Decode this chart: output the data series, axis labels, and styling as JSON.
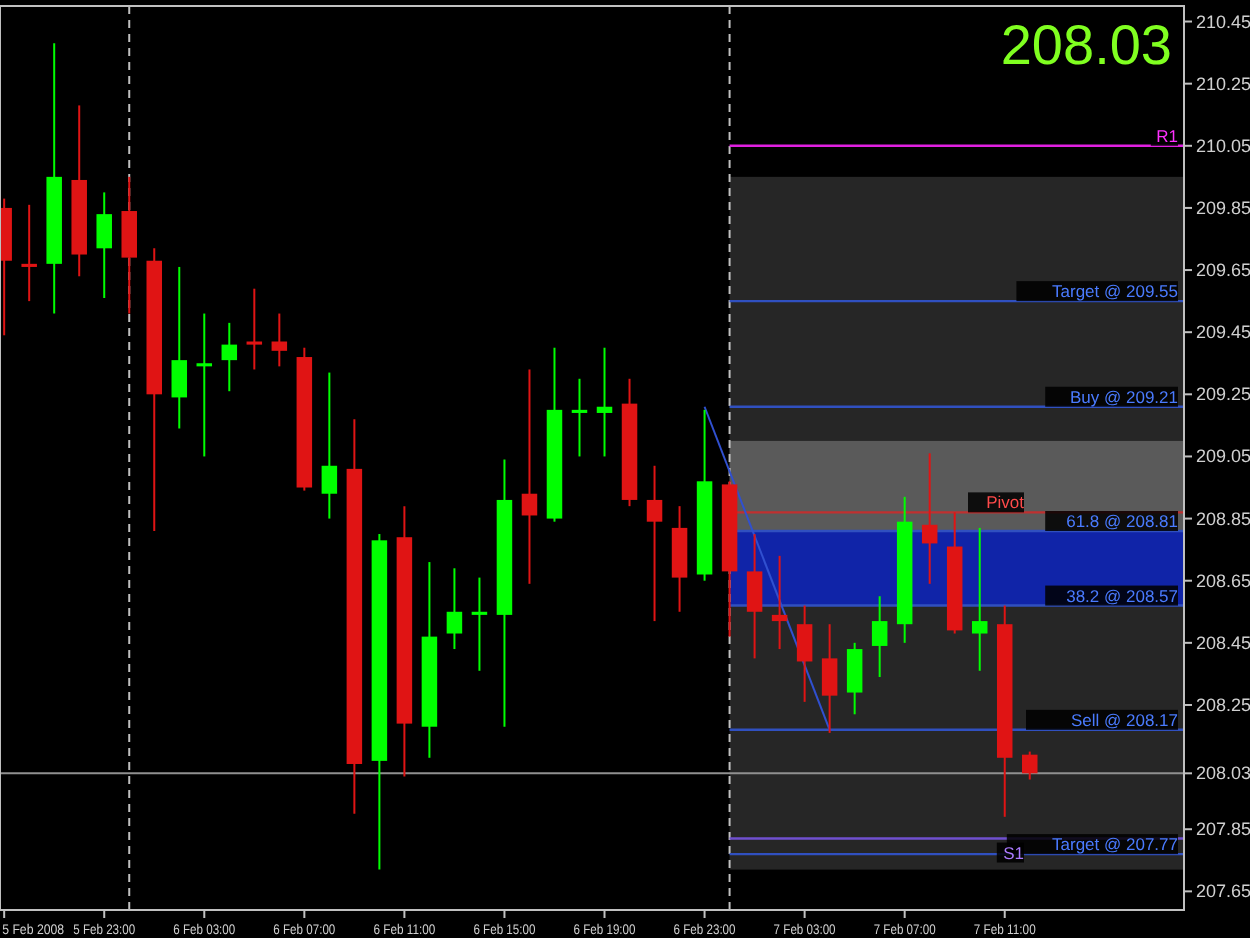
{
  "chart_data": {
    "type": "candlestick",
    "x": [
      "2008-02-05T19:00",
      "2008-02-05T20:00",
      "2008-02-05T21:00",
      "2008-02-05T22:00",
      "2008-02-05T23:00",
      "2008-02-06T00:00",
      "2008-02-06T01:00",
      "2008-02-06T02:00",
      "2008-02-06T03:00",
      "2008-02-06T04:00",
      "2008-02-06T05:00",
      "2008-02-06T06:00",
      "2008-02-06T07:00",
      "2008-02-06T08:00",
      "2008-02-06T09:00",
      "2008-02-06T10:00",
      "2008-02-06T11:00",
      "2008-02-06T12:00",
      "2008-02-06T13:00",
      "2008-02-06T14:00",
      "2008-02-06T15:00",
      "2008-02-06T16:00",
      "2008-02-06T17:00",
      "2008-02-06T18:00",
      "2008-02-06T19:00",
      "2008-02-06T20:00",
      "2008-02-06T21:00",
      "2008-02-06T22:00",
      "2008-02-06T23:00",
      "2008-02-07T00:00",
      "2008-02-07T01:00",
      "2008-02-07T02:00",
      "2008-02-07T03:00",
      "2008-02-07T04:00",
      "2008-02-07T05:00",
      "2008-02-07T06:00",
      "2008-02-07T07:00",
      "2008-02-07T08:00",
      "2008-02-07T09:00",
      "2008-02-07T10:00",
      "2008-02-07T11:00",
      "2008-02-07T12:00"
    ],
    "ohlc": [
      [
        209.85,
        209.88,
        209.44,
        209.68
      ],
      [
        209.67,
        209.86,
        209.55,
        209.66
      ],
      [
        209.67,
        210.38,
        209.51,
        209.95
      ],
      [
        209.94,
        210.18,
        209.63,
        209.7
      ],
      [
        209.72,
        209.9,
        209.56,
        209.83
      ],
      [
        209.84,
        209.95,
        209.51,
        209.69
      ],
      [
        209.68,
        209.72,
        208.81,
        209.25
      ],
      [
        209.24,
        209.66,
        209.14,
        209.36
      ],
      [
        209.34,
        209.51,
        209.05,
        209.35
      ],
      [
        209.36,
        209.48,
        209.26,
        209.41
      ],
      [
        209.42,
        209.59,
        209.33,
        209.41
      ],
      [
        209.42,
        209.51,
        209.34,
        209.39
      ],
      [
        209.37,
        209.4,
        208.94,
        208.95
      ],
      [
        208.93,
        209.32,
        208.85,
        209.02
      ],
      [
        209.01,
        209.17,
        207.9,
        208.06
      ],
      [
        208.07,
        208.8,
        207.72,
        208.78
      ],
      [
        208.79,
        208.89,
        208.02,
        208.19
      ],
      [
        208.18,
        208.71,
        208.08,
        208.47
      ],
      [
        208.48,
        208.69,
        208.43,
        208.55
      ],
      [
        208.54,
        208.66,
        208.36,
        208.55
      ],
      [
        208.54,
        209.04,
        208.18,
        208.91
      ],
      [
        208.93,
        209.33,
        208.64,
        208.86
      ],
      [
        208.85,
        209.4,
        208.84,
        209.2
      ],
      [
        209.19,
        209.3,
        209.05,
        209.2
      ],
      [
        209.19,
        209.4,
        209.05,
        209.21
      ],
      [
        209.22,
        209.3,
        208.89,
        208.91
      ],
      [
        208.91,
        209.02,
        208.52,
        208.84
      ],
      [
        208.82,
        208.89,
        208.55,
        208.66
      ],
      [
        208.67,
        209.2,
        208.65,
        208.97
      ],
      [
        208.96,
        208.97,
        208.47,
        208.68
      ],
      [
        208.68,
        208.8,
        208.4,
        208.55
      ],
      [
        208.54,
        208.73,
        208.43,
        208.52
      ],
      [
        208.51,
        208.57,
        208.26,
        208.39
      ],
      [
        208.4,
        208.51,
        208.16,
        208.28
      ],
      [
        208.29,
        208.45,
        208.22,
        208.43
      ],
      [
        208.44,
        208.6,
        208.34,
        208.52
      ],
      [
        208.51,
        208.92,
        208.45,
        208.84
      ],
      [
        208.83,
        209.06,
        208.64,
        208.77
      ],
      [
        208.76,
        208.87,
        208.48,
        208.49
      ],
      [
        208.48,
        208.82,
        208.36,
        208.52
      ],
      [
        208.51,
        208.57,
        207.89,
        208.08
      ],
      [
        208.09,
        208.1,
        208.01,
        208.03
      ]
    ],
    "series": [
      {
        "type": "line",
        "color": "#3050d0",
        "x": [
          "2008-02-06T23:00",
          "2008-02-07T04:00"
        ],
        "values": [
          209.21,
          208.17
        ]
      }
    ],
    "xlim": [
      "2008-02-05T18:50",
      "2008-02-07T18:10"
    ],
    "xticks": [
      {
        "value": "2008-02-05T19:00",
        "label": "5 Feb 2008"
      },
      {
        "value": "2008-02-05T23:00",
        "label": "5 Feb 23:00"
      },
      {
        "value": "2008-02-06T03:00",
        "label": "6 Feb 03:00"
      },
      {
        "value": "2008-02-06T07:00",
        "label": "6 Feb 07:00"
      },
      {
        "value": "2008-02-06T11:00",
        "label": "6 Feb 11:00"
      },
      {
        "value": "2008-02-06T15:00",
        "label": "6 Feb 15:00"
      },
      {
        "value": "2008-02-06T19:00",
        "label": "6 Feb 19:00"
      },
      {
        "value": "2008-02-06T23:00",
        "label": "6 Feb 23:00"
      },
      {
        "value": "2008-02-07T03:00",
        "label": "7 Feb 03:00"
      },
      {
        "value": "2008-02-07T07:00",
        "label": "7 Feb 07:00"
      },
      {
        "value": "2008-02-07T11:00",
        "label": "7 Feb 11:00"
      }
    ],
    "ylim": [
      207.59,
      210.5
    ],
    "yticks": [
      210.45,
      210.25,
      210.05,
      209.85,
      209.65,
      209.45,
      209.25,
      209.05,
      208.85,
      208.65,
      208.45,
      208.25,
      208.03,
      207.85,
      207.65
    ],
    "bands": [
      {
        "axis": "y",
        "from": 207.72,
        "to": 209.95,
        "color": "#262626"
      },
      {
        "axis": "y",
        "from": 208.81,
        "to": 209.1,
        "color": "#5a5a5a"
      },
      {
        "axis": "y",
        "from": 208.57,
        "to": 208.81,
        "color": "#1024a8"
      }
    ],
    "ref_lines": [
      {
        "axis": "x",
        "value": "2008-02-06T00:00",
        "color": "#c0c0c0",
        "line_style": "dashed"
      },
      {
        "axis": "x",
        "value": "2008-02-07T00:00",
        "color": "#c0c0c0",
        "line_style": "dashed"
      },
      {
        "axis": "y",
        "value": 208.03,
        "color": "#909090"
      },
      {
        "axis": "y",
        "value": 210.05,
        "label": "R1",
        "color": "#e020e0"
      },
      {
        "axis": "y",
        "value": 209.55,
        "label": "Target @  209.55",
        "color": "#3050c0"
      },
      {
        "axis": "y",
        "value": 209.21,
        "label": "Buy  @ 209.21",
        "color": "#3050c0"
      },
      {
        "axis": "y",
        "value": 208.81,
        "label": "61.8 @ 208.81",
        "color": "#3050c0"
      },
      {
        "axis": "y",
        "value": 208.87,
        "label": "Pivot",
        "color": "#c03030"
      },
      {
        "axis": "y",
        "value": 208.57,
        "label": "38.2 @ 208.57",
        "color": "#3050c0"
      },
      {
        "axis": "y",
        "value": 208.17,
        "label": "Sell  @  208.17",
        "color": "#3050c0"
      },
      {
        "axis": "y",
        "value": 207.77,
        "label": "Target @   207.77",
        "color": "#3050c0"
      },
      {
        "axis": "y",
        "value": 207.82,
        "label": "S1",
        "color": "#7050d0"
      }
    ],
    "annotations": [
      "208.03"
    ]
  }
}
